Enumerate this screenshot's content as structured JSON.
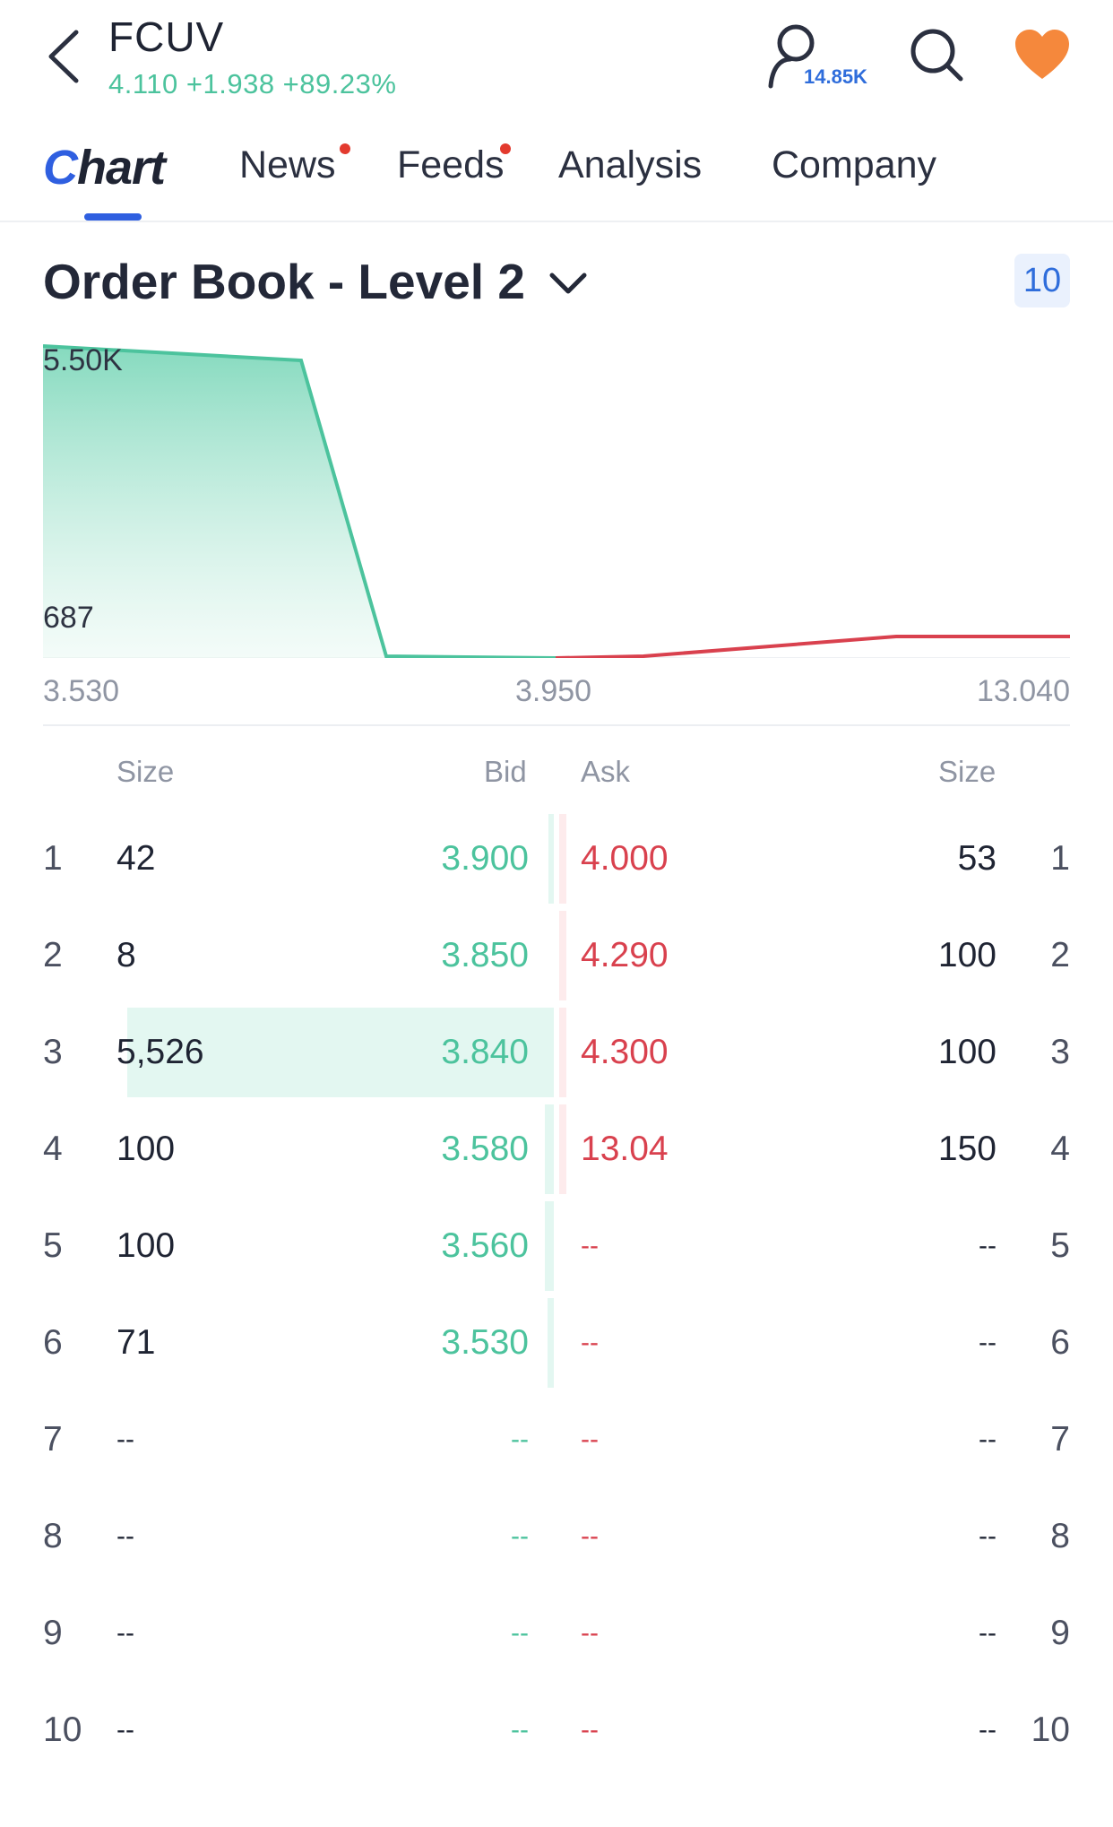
{
  "header": {
    "ticker": "FCUV",
    "quote": "4.110 +1.938 +89.23%",
    "followers": "14.85K"
  },
  "tabs": [
    {
      "label": "Chart",
      "active": true
    },
    {
      "label": "News",
      "dot": true
    },
    {
      "label": "Feeds",
      "dot": true
    },
    {
      "label": "Analysis"
    },
    {
      "label": "Company"
    }
  ],
  "order_book": {
    "title": "Order Book - Level 2",
    "levels": "10"
  },
  "depth_chart": {
    "y_top": "5.50K",
    "y_bottom": "687",
    "x_left": "3.530",
    "x_mid": "3.950",
    "x_right": "13.040",
    "bid_color": "#4cc39d",
    "ask_color": "#d9414e"
  },
  "table": {
    "headers": {
      "size_left": "Size",
      "bid": "Bid",
      "ask": "Ask",
      "size_right": "Size"
    },
    "rows": [
      {
        "n": "1",
        "bid_size": "42",
        "bid": "3.900",
        "ask": "4.000",
        "ask_size": "53",
        "bid_frac": 0.008,
        "ask_frac": 0.02
      },
      {
        "n": "2",
        "bid_size": "8",
        "bid": "3.850",
        "ask": "4.290",
        "ask_size": "100",
        "bid_frac": 0.0,
        "ask_frac": 0.02
      },
      {
        "n": "3",
        "bid_size": "5,526",
        "bid": "3.840",
        "ask": "4.300",
        "ask_size": "100",
        "bid_frac": 1.0,
        "ask_frac": 0.02
      },
      {
        "n": "4",
        "bid_size": "100",
        "bid": "3.580",
        "ask": "13.04",
        "ask_size": "150",
        "bid_frac": 0.02,
        "ask_frac": 0.03
      },
      {
        "n": "5",
        "bid_size": "100",
        "bid": "3.560",
        "ask": "--",
        "ask_size": "--",
        "bid_frac": 0.02,
        "ask_frac": 0
      },
      {
        "n": "6",
        "bid_size": "71",
        "bid": "3.530",
        "ask": "--",
        "ask_size": "--",
        "bid_frac": 0.015,
        "ask_frac": 0
      },
      {
        "n": "7",
        "bid_size": "--",
        "bid": "--",
        "ask": "--",
        "ask_size": "--",
        "bid_frac": 0,
        "ask_frac": 0
      },
      {
        "n": "8",
        "bid_size": "--",
        "bid": "--",
        "ask": "--",
        "ask_size": "--",
        "bid_frac": 0,
        "ask_frac": 0
      },
      {
        "n": "9",
        "bid_size": "--",
        "bid": "--",
        "ask": "--",
        "ask_size": "--",
        "bid_frac": 0,
        "ask_frac": 0
      },
      {
        "n": "10",
        "bid_size": "--",
        "bid": "--",
        "ask": "--",
        "ask_size": "--",
        "bid_frac": 0,
        "ask_frac": 0
      }
    ]
  }
}
